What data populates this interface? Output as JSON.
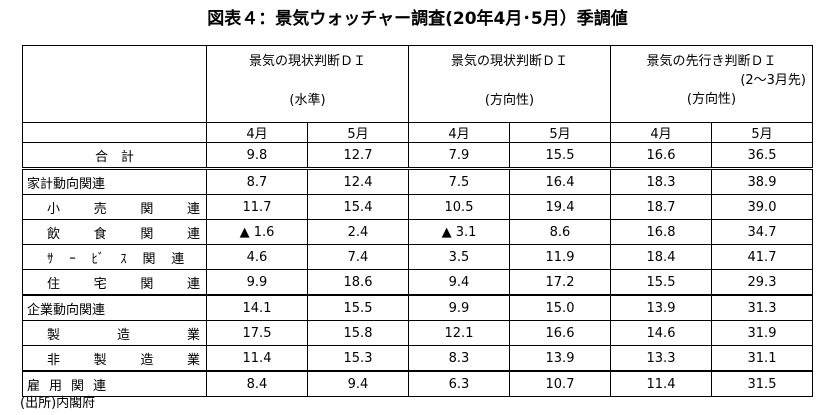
{
  "header": {
    "title": "図表４：景気ウォッチャー調査(20年4月･5月）季調値"
  },
  "table": {
    "groups": [
      [
        "景気の現状判断ＤＩ",
        "(水準)"
      ],
      [
        "景気の現状判断ＤＩ",
        "(方向性)"
      ],
      [
        "景気の先行き判断ＤＩ",
        "(2～3月先)",
        "(方向性)"
      ]
    ],
    "months": [
      "4月",
      "5月",
      "4月",
      "5月",
      "4月",
      "5月"
    ],
    "rows": [
      [
        "合　計",
        "9.8",
        "12.7",
        "7.9",
        "15.5",
        "16.6",
        "36.5"
      ],
      [
        "家計動向関連",
        "8.7",
        "12.4",
        "7.5",
        "16.4",
        "18.3",
        "38.9"
      ],
      [
        "小売関連",
        "11.7",
        "15.4",
        "10.5",
        "19.4",
        "18.7",
        "39.0"
      ],
      [
        "飲食関連",
        "▲ 1.6",
        "2.4",
        "▲ 3.1",
        "8.6",
        "16.8",
        "34.7"
      ],
      [
        "ｻｰﾋﾞｽ関連",
        "4.6",
        "7.4",
        "3.5",
        "11.9",
        "18.4",
        "41.7"
      ],
      [
        "住宅関連",
        "9.9",
        "18.6",
        "9.4",
        "17.2",
        "15.5",
        "29.3"
      ],
      [
        "企業動向関連",
        "14.1",
        "15.5",
        "9.9",
        "15.0",
        "13.9",
        "31.3"
      ],
      [
        "製造業",
        "17.5",
        "15.8",
        "12.1",
        "16.6",
        "14.6",
        "31.9"
      ],
      [
        "非製造業",
        "11.4",
        "15.3",
        "8.3",
        "13.9",
        "13.3",
        "31.1"
      ],
      [
        "雇用関連",
        "8.4",
        "9.4",
        "6.3",
        "10.7",
        "11.4",
        "31.5"
      ]
    ]
  },
  "footer": {
    "note": "(出所)内閣府"
  }
}
